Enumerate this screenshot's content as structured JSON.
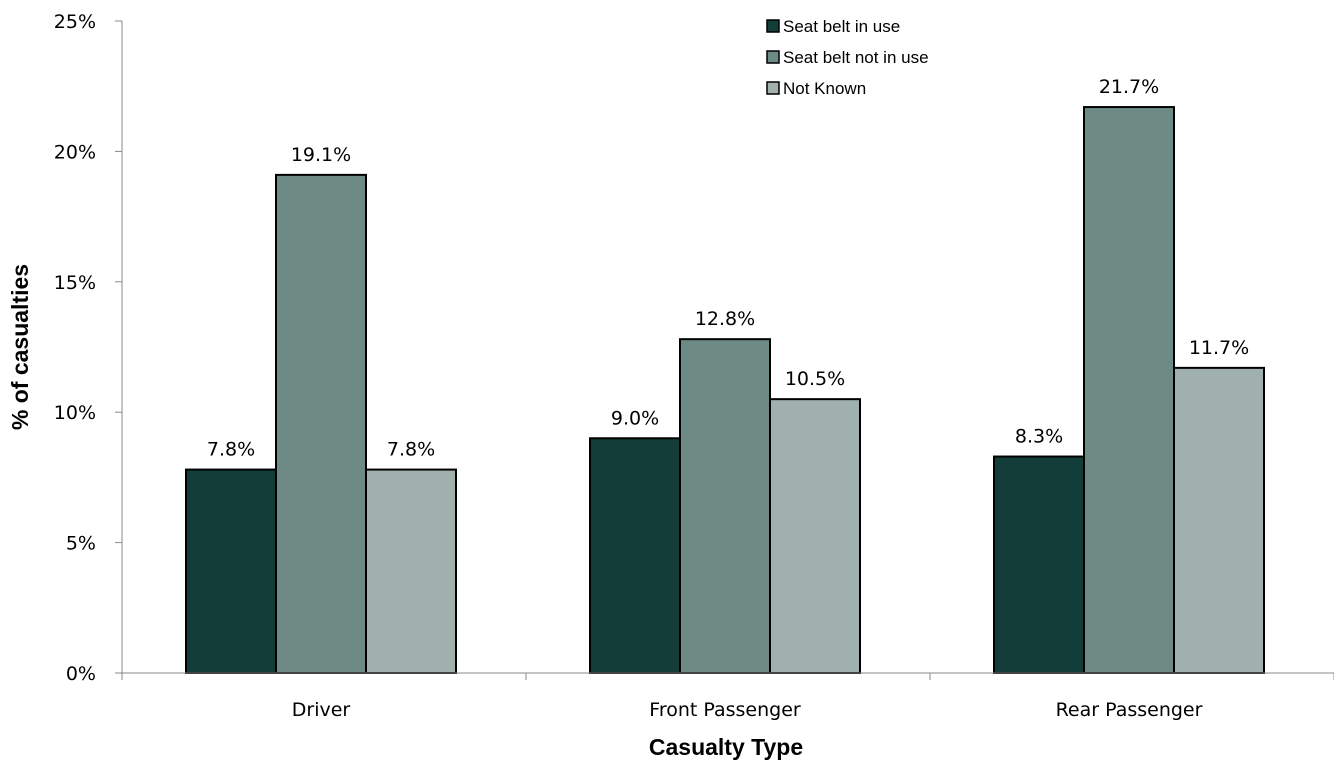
{
  "chart_data": {
    "type": "bar",
    "categories": [
      "Driver",
      "Front Passenger",
      "Rear Passenger"
    ],
    "series": [
      {
        "name": "Seat belt in use",
        "values": [
          7.8,
          9.0,
          8.3
        ],
        "labels": [
          "7.8%",
          "9.0%",
          "8.3%"
        ],
        "color": "#133D38"
      },
      {
        "name": "Seat belt not in use",
        "values": [
          19.1,
          12.8,
          21.7
        ],
        "labels": [
          "19.1%",
          "12.8%",
          "21.7%"
        ],
        "color": "#6E8A84"
      },
      {
        "name": "Not Known",
        "values": [
          7.8,
          10.5,
          11.7
        ],
        "labels": [
          "7.8%",
          "10.5%",
          "11.7%"
        ],
        "color": "#A0B0AD"
      }
    ],
    "xlabel": "Casualty Type",
    "ylabel": "% of casualties",
    "ylim": [
      0,
      25
    ],
    "yticks": [
      0,
      5,
      10,
      15,
      20,
      25
    ],
    "ytick_labels": [
      "0%",
      "5%",
      "10%",
      "15%",
      "20%",
      "25%"
    ],
    "grid": false,
    "legend_position": "top-center"
  }
}
